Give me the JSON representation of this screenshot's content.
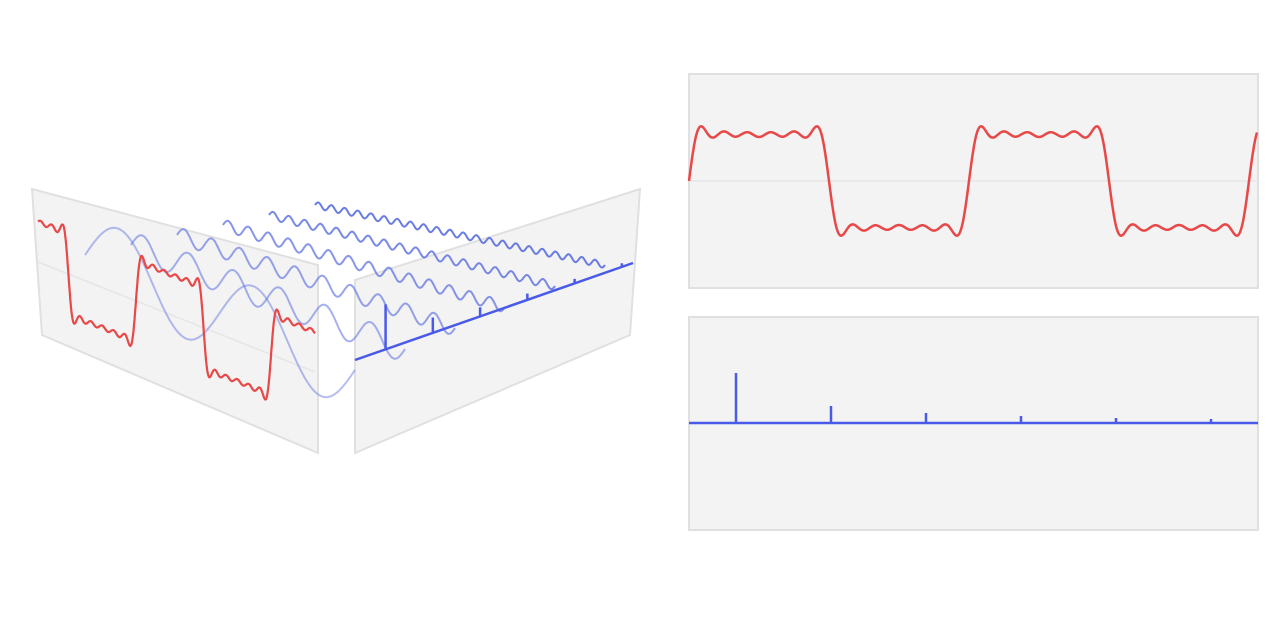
{
  "spectrum": {
    "amplitudes": [
      1,
      0.34,
      0.2,
      0.14,
      0.1,
      0.08
    ]
  }
}
